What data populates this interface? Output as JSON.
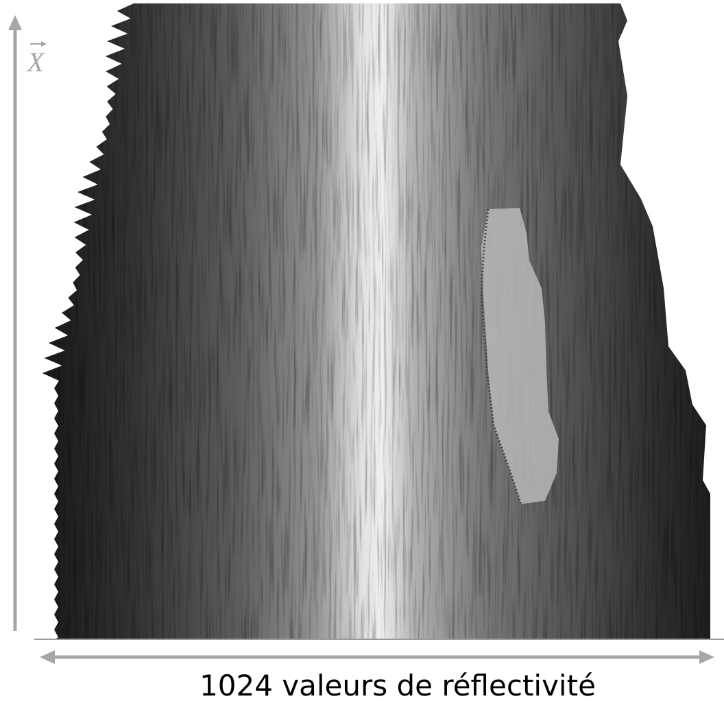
{
  "axes": {
    "y_label": "X",
    "x_label": "1024 valeurs de réflectivité"
  }
}
